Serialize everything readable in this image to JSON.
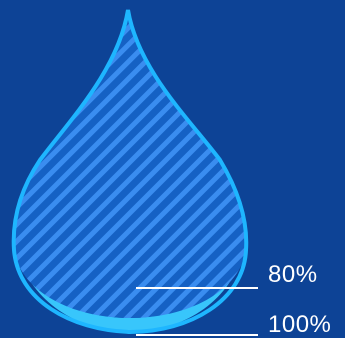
{
  "colors": {
    "background": "#0d4396",
    "drop_outline": "#1eb6ff",
    "drop_fill_dark": "#1561c4",
    "drop_stripe": "#3a8df0",
    "drop_bottom": "#38c6fb",
    "leader_line": "#ffffff"
  },
  "levels": [
    {
      "label": "80%",
      "value": 80
    },
    {
      "label": "100%",
      "value": 100
    }
  ],
  "icons": {
    "drop": "water-drop-icon"
  }
}
